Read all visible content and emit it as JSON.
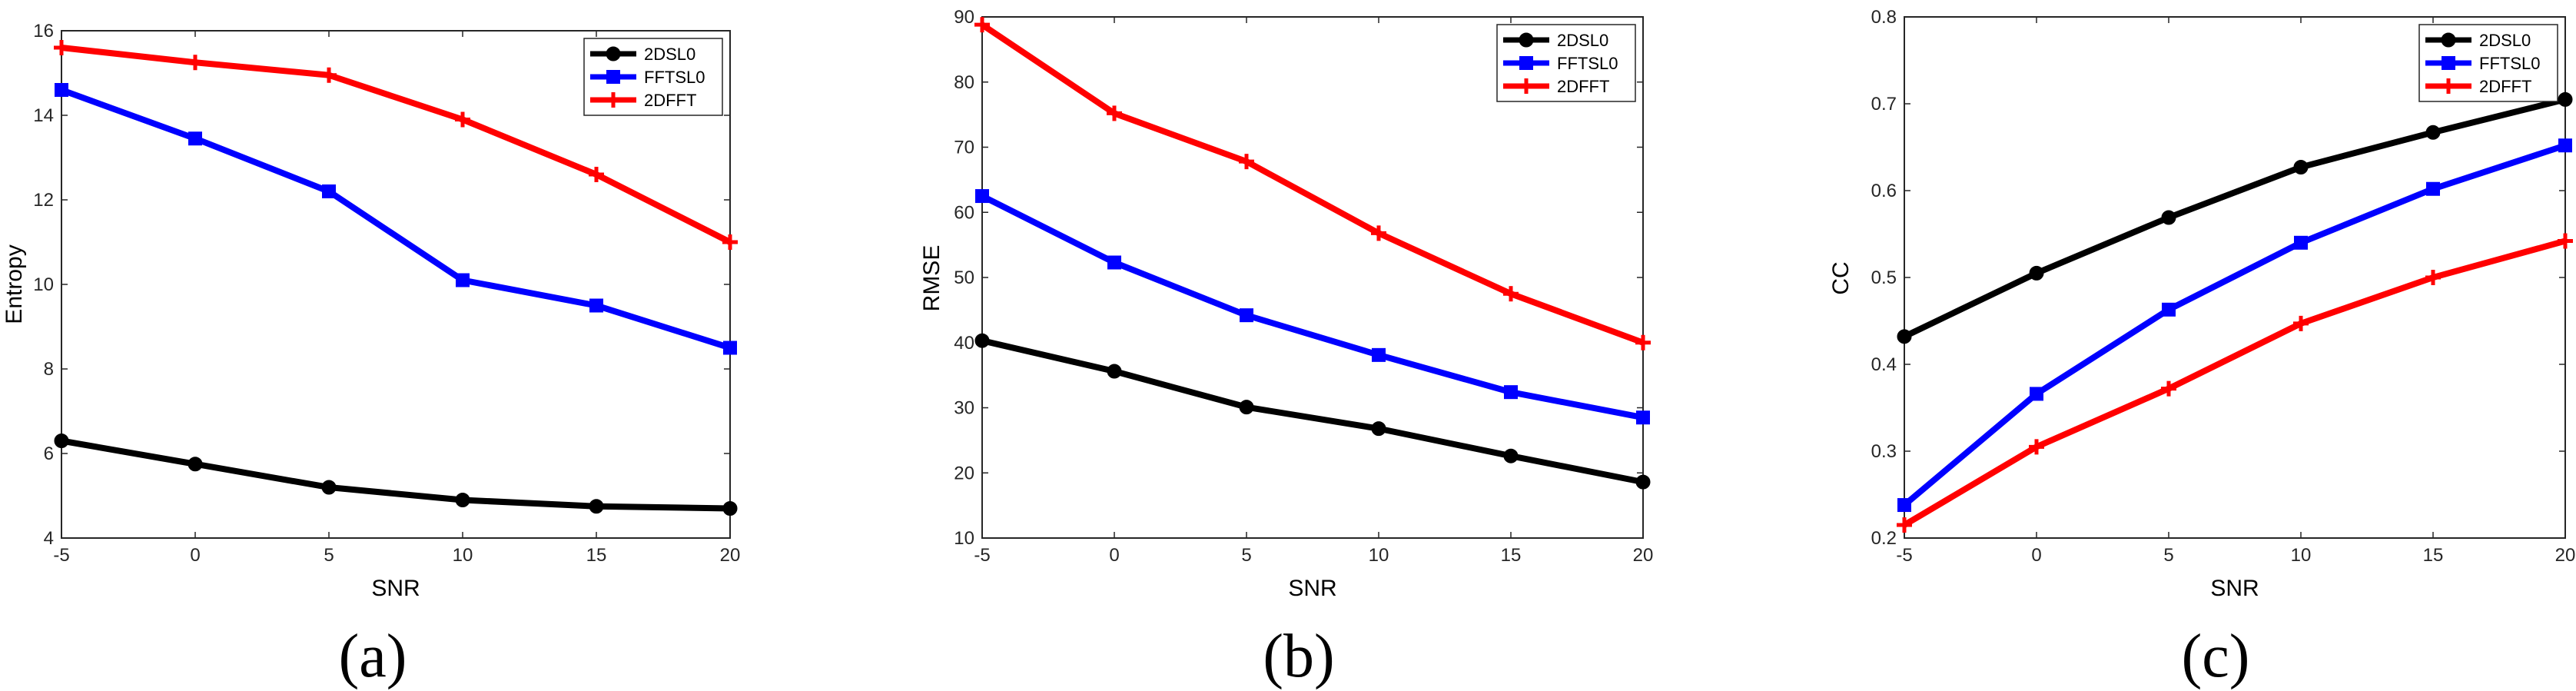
{
  "figure": {
    "panel_labels": [
      "(a)",
      "(b)",
      "(c)"
    ]
  },
  "chart_data": [
    {
      "type": "line",
      "panel": "(a)",
      "xlabel": "SNR",
      "ylabel": "Entropy",
      "x": [
        -5,
        0,
        5,
        10,
        15,
        20
      ],
      "xlim": [
        -5,
        20
      ],
      "ylim": [
        4,
        16
      ],
      "xticks": [
        -5,
        0,
        5,
        10,
        15,
        20
      ],
      "yticks": [
        4,
        6,
        8,
        10,
        12,
        14,
        16
      ],
      "legend_position": "top-right",
      "series": [
        {
          "name": "2DSL0",
          "color": "#000000",
          "marker": "circle",
          "values": [
            6.3,
            5.75,
            5.2,
            4.9,
            4.75,
            4.7
          ]
        },
        {
          "name": "FFTSL0",
          "color": "#0000ff",
          "marker": "square",
          "values": [
            14.6,
            13.45,
            12.2,
            10.1,
            9.5,
            8.5
          ]
        },
        {
          "name": "2DFFT",
          "color": "#ff0000",
          "marker": "plus",
          "values": [
            15.6,
            15.25,
            14.95,
            13.9,
            12.6,
            11.0
          ]
        }
      ]
    },
    {
      "type": "line",
      "panel": "(b)",
      "xlabel": "SNR",
      "ylabel": "RMSE",
      "x": [
        -5,
        0,
        5,
        10,
        15,
        20
      ],
      "xlim": [
        -5,
        20
      ],
      "ylim": [
        10,
        90
      ],
      "xticks": [
        -5,
        0,
        5,
        10,
        15,
        20
      ],
      "yticks": [
        10,
        20,
        30,
        40,
        50,
        60,
        70,
        80,
        90
      ],
      "legend_position": "top-right",
      "series": [
        {
          "name": "2DSL0",
          "color": "#000000",
          "marker": "circle",
          "values": [
            40.3,
            35.6,
            30.1,
            26.8,
            22.6,
            18.6
          ]
        },
        {
          "name": "FFTSL0",
          "color": "#0000ff",
          "marker": "square",
          "values": [
            62.5,
            52.3,
            44.2,
            38.1,
            32.4,
            28.5
          ]
        },
        {
          "name": "2DFFT",
          "color": "#ff0000",
          "marker": "plus",
          "values": [
            88.8,
            75.2,
            67.8,
            56.8,
            47.5,
            40.0
          ]
        }
      ]
    },
    {
      "type": "line",
      "panel": "(c)",
      "xlabel": "SNR",
      "ylabel": "CC",
      "x": [
        -5,
        0,
        5,
        10,
        15,
        20
      ],
      "xlim": [
        -5,
        20
      ],
      "ylim": [
        0.2,
        0.8
      ],
      "xticks": [
        -5,
        0,
        5,
        10,
        15,
        20
      ],
      "yticks": [
        0.2,
        0.3,
        0.4,
        0.5,
        0.6,
        0.7,
        0.8
      ],
      "legend_position": "top-right",
      "series": [
        {
          "name": "2DSL0",
          "color": "#000000",
          "marker": "circle",
          "values": [
            0.432,
            0.505,
            0.569,
            0.627,
            0.667,
            0.705
          ]
        },
        {
          "name": "FFTSL0",
          "color": "#0000ff",
          "marker": "square",
          "values": [
            0.238,
            0.366,
            0.463,
            0.54,
            0.602,
            0.652
          ]
        },
        {
          "name": "2DFFT",
          "color": "#ff0000",
          "marker": "plus",
          "values": [
            0.215,
            0.305,
            0.372,
            0.447,
            0.5,
            0.542
          ]
        }
      ]
    }
  ]
}
